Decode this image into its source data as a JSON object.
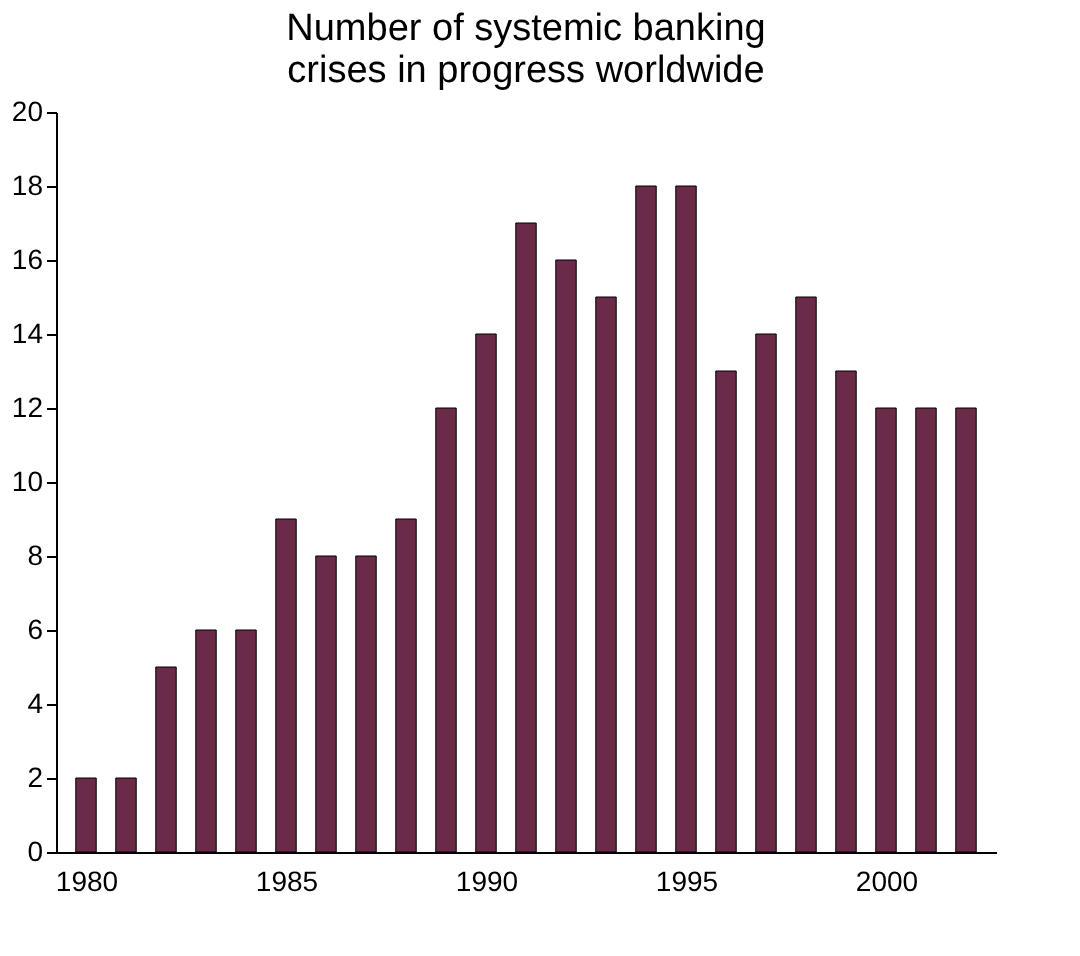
{
  "chart_data": {
    "type": "bar",
    "title": [
      "Number of systemic banking",
      "crises in progress worldwide"
    ],
    "x": [
      1980,
      1981,
      1982,
      1983,
      1984,
      1985,
      1986,
      1987,
      1988,
      1989,
      1990,
      1991,
      1992,
      1993,
      1994,
      1995,
      1996,
      1997,
      1998,
      1999,
      2000,
      2001,
      2002
    ],
    "values": [
      2,
      2,
      5,
      6,
      6,
      9,
      8,
      8,
      9,
      12,
      14,
      17,
      16,
      15,
      18,
      18,
      13,
      14,
      15,
      13,
      12,
      12,
      12
    ],
    "color": "#6b2a48",
    "xlim": [
      1979.5,
      2002.5
    ],
    "xticks": [
      1980,
      1985,
      1990,
      1995,
      2000
    ],
    "ylim": [
      0,
      20
    ],
    "yticks": [
      0,
      2,
      4,
      6,
      8,
      10,
      12,
      14,
      16,
      18,
      20
    ],
    "grid": false
  }
}
